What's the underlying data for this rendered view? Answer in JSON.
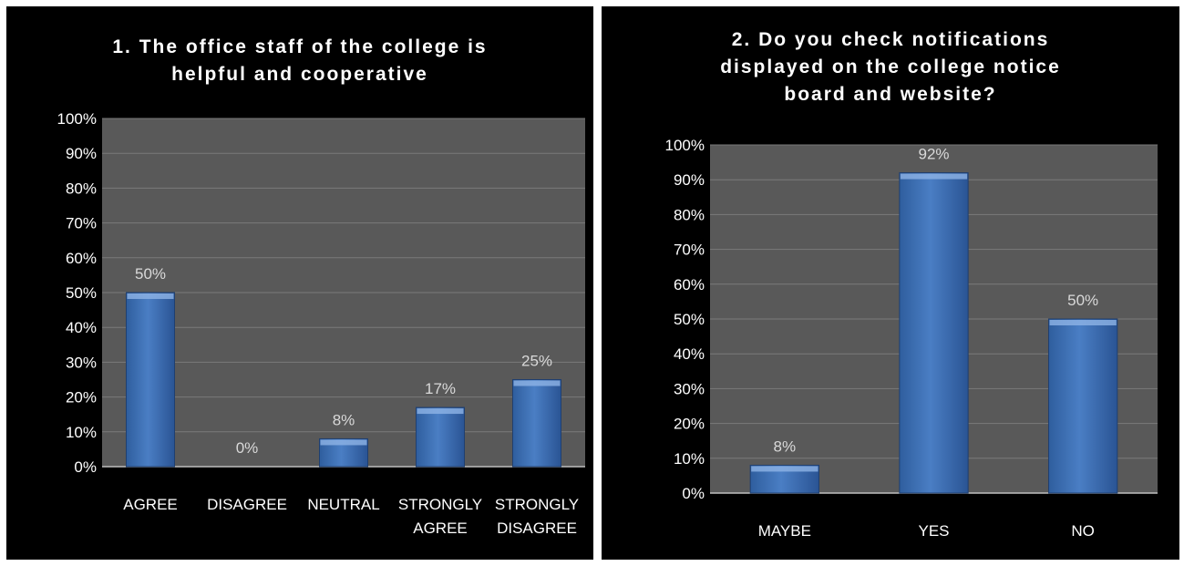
{
  "colors": {
    "background": "#000000",
    "plot_area": "#595959",
    "bar": "#4a7ec4",
    "text": "#ffffff",
    "label": "#d9d9d9"
  },
  "chart_data": [
    {
      "type": "bar",
      "title": "1. The office staff of the college is\nhelpful and cooperative",
      "categories": [
        "AGREE",
        "DISAGREE",
        "NEUTRAL",
        "STRONGLY\nAGREE",
        "STRONGLY\nDISAGREE"
      ],
      "values": [
        50,
        0,
        8,
        17,
        25
      ],
      "data_labels": [
        "50%",
        "0%",
        "8%",
        "17%",
        "25%"
      ],
      "ylim": [
        0,
        100
      ],
      "yticks": [
        "0%",
        "10%",
        "20%",
        "30%",
        "40%",
        "50%",
        "60%",
        "70%",
        "80%",
        "90%",
        "100%"
      ],
      "grid": true,
      "legend": "none"
    },
    {
      "type": "bar",
      "title": "2. Do you check notifications\ndisplayed on the college notice\nboard and website?",
      "categories": [
        "MAYBE",
        "YES",
        "NO"
      ],
      "values": [
        8,
        92,
        50
      ],
      "data_labels": [
        "8%",
        "92%",
        "50%"
      ],
      "ylim": [
        0,
        100
      ],
      "yticks": [
        "0%",
        "10%",
        "20%",
        "30%",
        "40%",
        "50%",
        "60%",
        "70%",
        "80%",
        "90%",
        "100%"
      ],
      "grid": true,
      "legend": "none"
    }
  ]
}
